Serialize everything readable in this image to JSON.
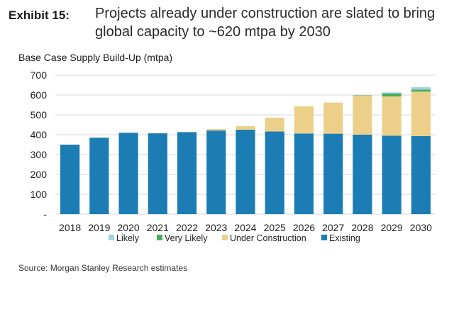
{
  "header": {
    "exhibit_label": "Exhibit 15:",
    "title": "Projects already under construction are slated to bring global capacity to ~620 mtpa by 2030"
  },
  "source": "Source: Morgan Stanley Research estimates",
  "colors": {
    "existing": "#1b7db4",
    "under_construction": "#ecd08a",
    "very_likely": "#46ad5c",
    "likely": "#9fd3e3",
    "gridline": "#d9d9d9"
  },
  "chart_data": {
    "type": "bar",
    "stacked": true,
    "title": "Base Case Supply Build-Up (mtpa)",
    "xlabel": "",
    "ylabel": "",
    "ylim": [
      0,
      700
    ],
    "yticks": [
      0,
      100,
      200,
      300,
      400,
      500,
      600,
      700
    ],
    "ytick_labels": [
      "-",
      "100",
      "200",
      "300",
      "400",
      "500",
      "600",
      "700"
    ],
    "grid": true,
    "legend_position": "bottom",
    "categories": [
      "2018",
      "2019",
      "2020",
      "2021",
      "2022",
      "2023",
      "2024",
      "2025",
      "2026",
      "2027",
      "2028",
      "2029",
      "2030"
    ],
    "series": [
      {
        "name": "Existing",
        "color_key": "existing",
        "values": [
          350,
          385,
          410,
          407,
          413,
          421,
          425,
          416,
          406,
          405,
          400,
          395,
          393
        ]
      },
      {
        "name": "Under Construction",
        "color_key": "under_construction",
        "values": [
          0,
          0,
          0,
          0,
          2,
          8,
          18,
          70,
          137,
          157,
          196,
          198,
          224
        ]
      },
      {
        "name": "Very Likely",
        "color_key": "very_likely",
        "values": [
          0,
          0,
          0,
          0,
          0,
          0,
          0,
          0,
          0,
          0,
          2,
          15,
          10
        ]
      },
      {
        "name": "Likely",
        "color_key": "likely",
        "values": [
          0,
          0,
          0,
          0,
          0,
          0,
          0,
          0,
          0,
          0,
          0,
          5,
          12
        ]
      }
    ],
    "legend": [
      "Likely",
      "Very Likely",
      "Under Construction",
      "Existing"
    ]
  }
}
